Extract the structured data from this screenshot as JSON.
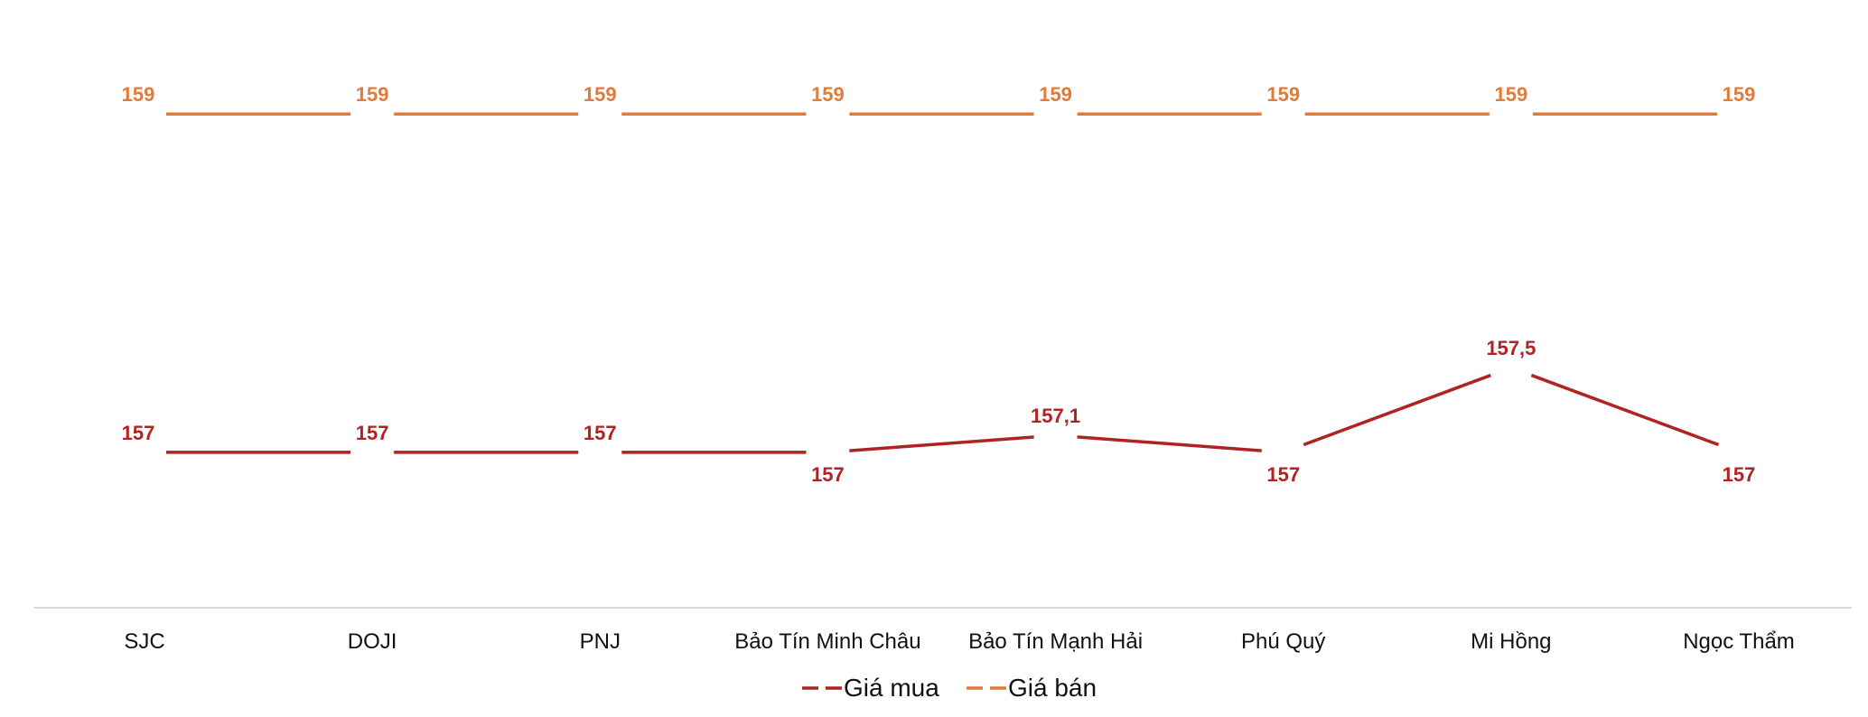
{
  "chart_data": {
    "type": "line",
    "title": "",
    "xlabel": "",
    "ylabel": "",
    "categories": [
      "SJC",
      "DOJI",
      "PNJ",
      "Bảo Tín Minh Châu",
      "Bảo Tín Mạnh Hải",
      "Phú Quý",
      "Mi Hồng",
      "Ngọc Thẩm"
    ],
    "series": [
      {
        "name": "Giá mua",
        "color": "#B22222",
        "values": [
          157,
          157,
          157,
          157,
          157.1,
          157,
          157.5,
          157
        ],
        "labels": [
          "157",
          "157",
          "157",
          "157",
          "157,1",
          "157",
          "157,5",
          "157"
        ]
      },
      {
        "name": "Giá bán",
        "color": "#E07B39",
        "values": [
          159,
          159,
          159,
          159,
          159,
          159,
          159,
          159
        ],
        "labels": [
          "159",
          "159",
          "159",
          "159",
          "159",
          "159",
          "159",
          "159"
        ]
      }
    ],
    "ylim": [
      156.3,
      159.3
    ],
    "grid": false,
    "legend_position": "bottom",
    "axis_color": "#D9D9D9"
  }
}
